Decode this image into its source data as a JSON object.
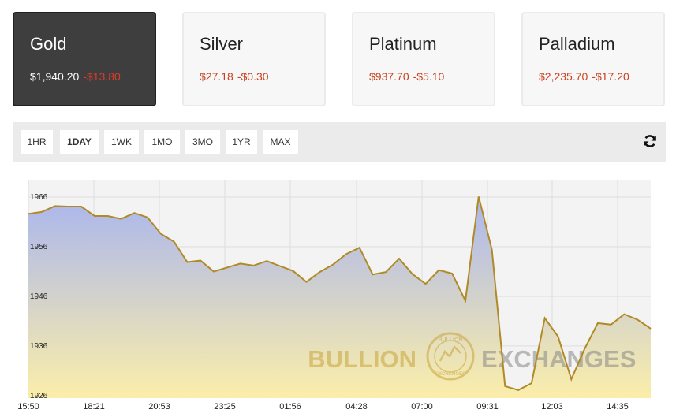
{
  "metals": [
    {
      "name": "Gold",
      "price": "$1,940.20",
      "change": "-$13.80",
      "active": true
    },
    {
      "name": "Silver",
      "price": "$27.18",
      "change": "-$0.30",
      "active": false
    },
    {
      "name": "Platinum",
      "price": "$937.70",
      "change": "-$5.10",
      "active": false
    },
    {
      "name": "Palladium",
      "price": "$2,235.70",
      "change": "-$17.20",
      "active": false
    }
  ],
  "ranges": [
    {
      "label": "1HR",
      "active": false
    },
    {
      "label": "1DAY",
      "active": true
    },
    {
      "label": "1WK",
      "active": false
    },
    {
      "label": "1MO",
      "active": false
    },
    {
      "label": "3MO",
      "active": false
    },
    {
      "label": "1YR",
      "active": false
    },
    {
      "label": "MAX",
      "active": false
    }
  ],
  "toolbar": {
    "refresh_icon": "refresh-icon"
  },
  "watermark": {
    "left": "BULLION",
    "right": "EXCHANGES",
    "seal_top": "BULLION",
    "seal_bottom": "EXCHANGES"
  },
  "colors": {
    "line": "#b08a26",
    "fill_top": "#aab6ee",
    "fill_bottom": "#fbeeaa",
    "negative": "#c8431f",
    "active_card": "#3e3e3e"
  },
  "chart_data": {
    "type": "area",
    "title": "",
    "xlabel": "",
    "ylabel": "",
    "ylim": [
      1925.5,
      1969.5
    ],
    "yticks": [
      1966,
      1956,
      1946,
      1936,
      1926
    ],
    "xtick_labels": [
      "15:50",
      "18:21",
      "20:53",
      "23:25",
      "01:56",
      "04:28",
      "07:00",
      "09:31",
      "12:03",
      "14:35"
    ],
    "grid": true,
    "series": [
      {
        "values": [
          1962.6,
          1963.0,
          1964.2,
          1964.1,
          1964.1,
          1962.2,
          1962.2,
          1961.6,
          1962.8,
          1961.9,
          1958.6,
          1957.0,
          1952.9,
          1953.2,
          1951.0,
          1951.8,
          1952.6,
          1952.2,
          1953.1,
          1952.1,
          1951.1,
          1948.9,
          1950.9,
          1952.4,
          1954.5,
          1955.8,
          1950.4,
          1950.9,
          1953.6,
          1950.5,
          1948.5,
          1951.3,
          1950.6,
          1945.1,
          1966.1,
          1955.4,
          1927.9,
          1927.1,
          1928.5,
          1941.6,
          1937.9,
          1929.3,
          1935.4,
          1940.6,
          1940.3,
          1942.4,
          1941.3,
          1939.5
        ]
      }
    ]
  }
}
